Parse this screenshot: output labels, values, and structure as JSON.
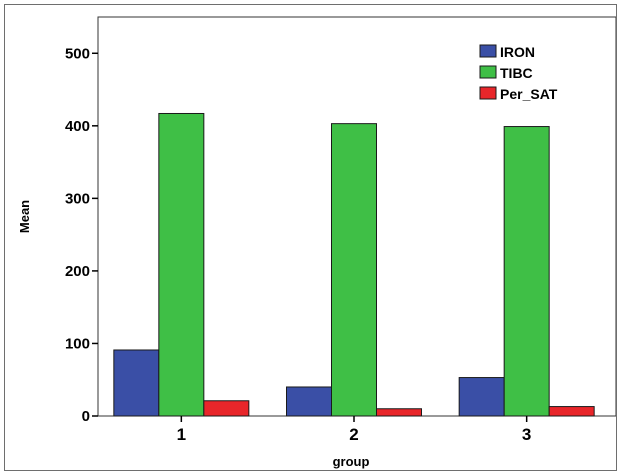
{
  "chart_data": {
    "type": "bar",
    "title": "",
    "xlabel": "group",
    "ylabel": "Mean",
    "categories": [
      "1",
      "2",
      "3"
    ],
    "ylim": [
      0,
      550
    ],
    "yticks": [
      0,
      100,
      200,
      300,
      400,
      500
    ],
    "grid": false,
    "legend_position": "top-right",
    "series": [
      {
        "name": "IRON",
        "color": "#3a4fa6",
        "values": [
          91,
          40,
          53
        ]
      },
      {
        "name": "TIBC",
        "color": "#3fbf46",
        "values": [
          417,
          403,
          399
        ]
      },
      {
        "name": "Per_SAT",
        "color": "#e8262a",
        "values": [
          21,
          10,
          13
        ]
      }
    ]
  }
}
